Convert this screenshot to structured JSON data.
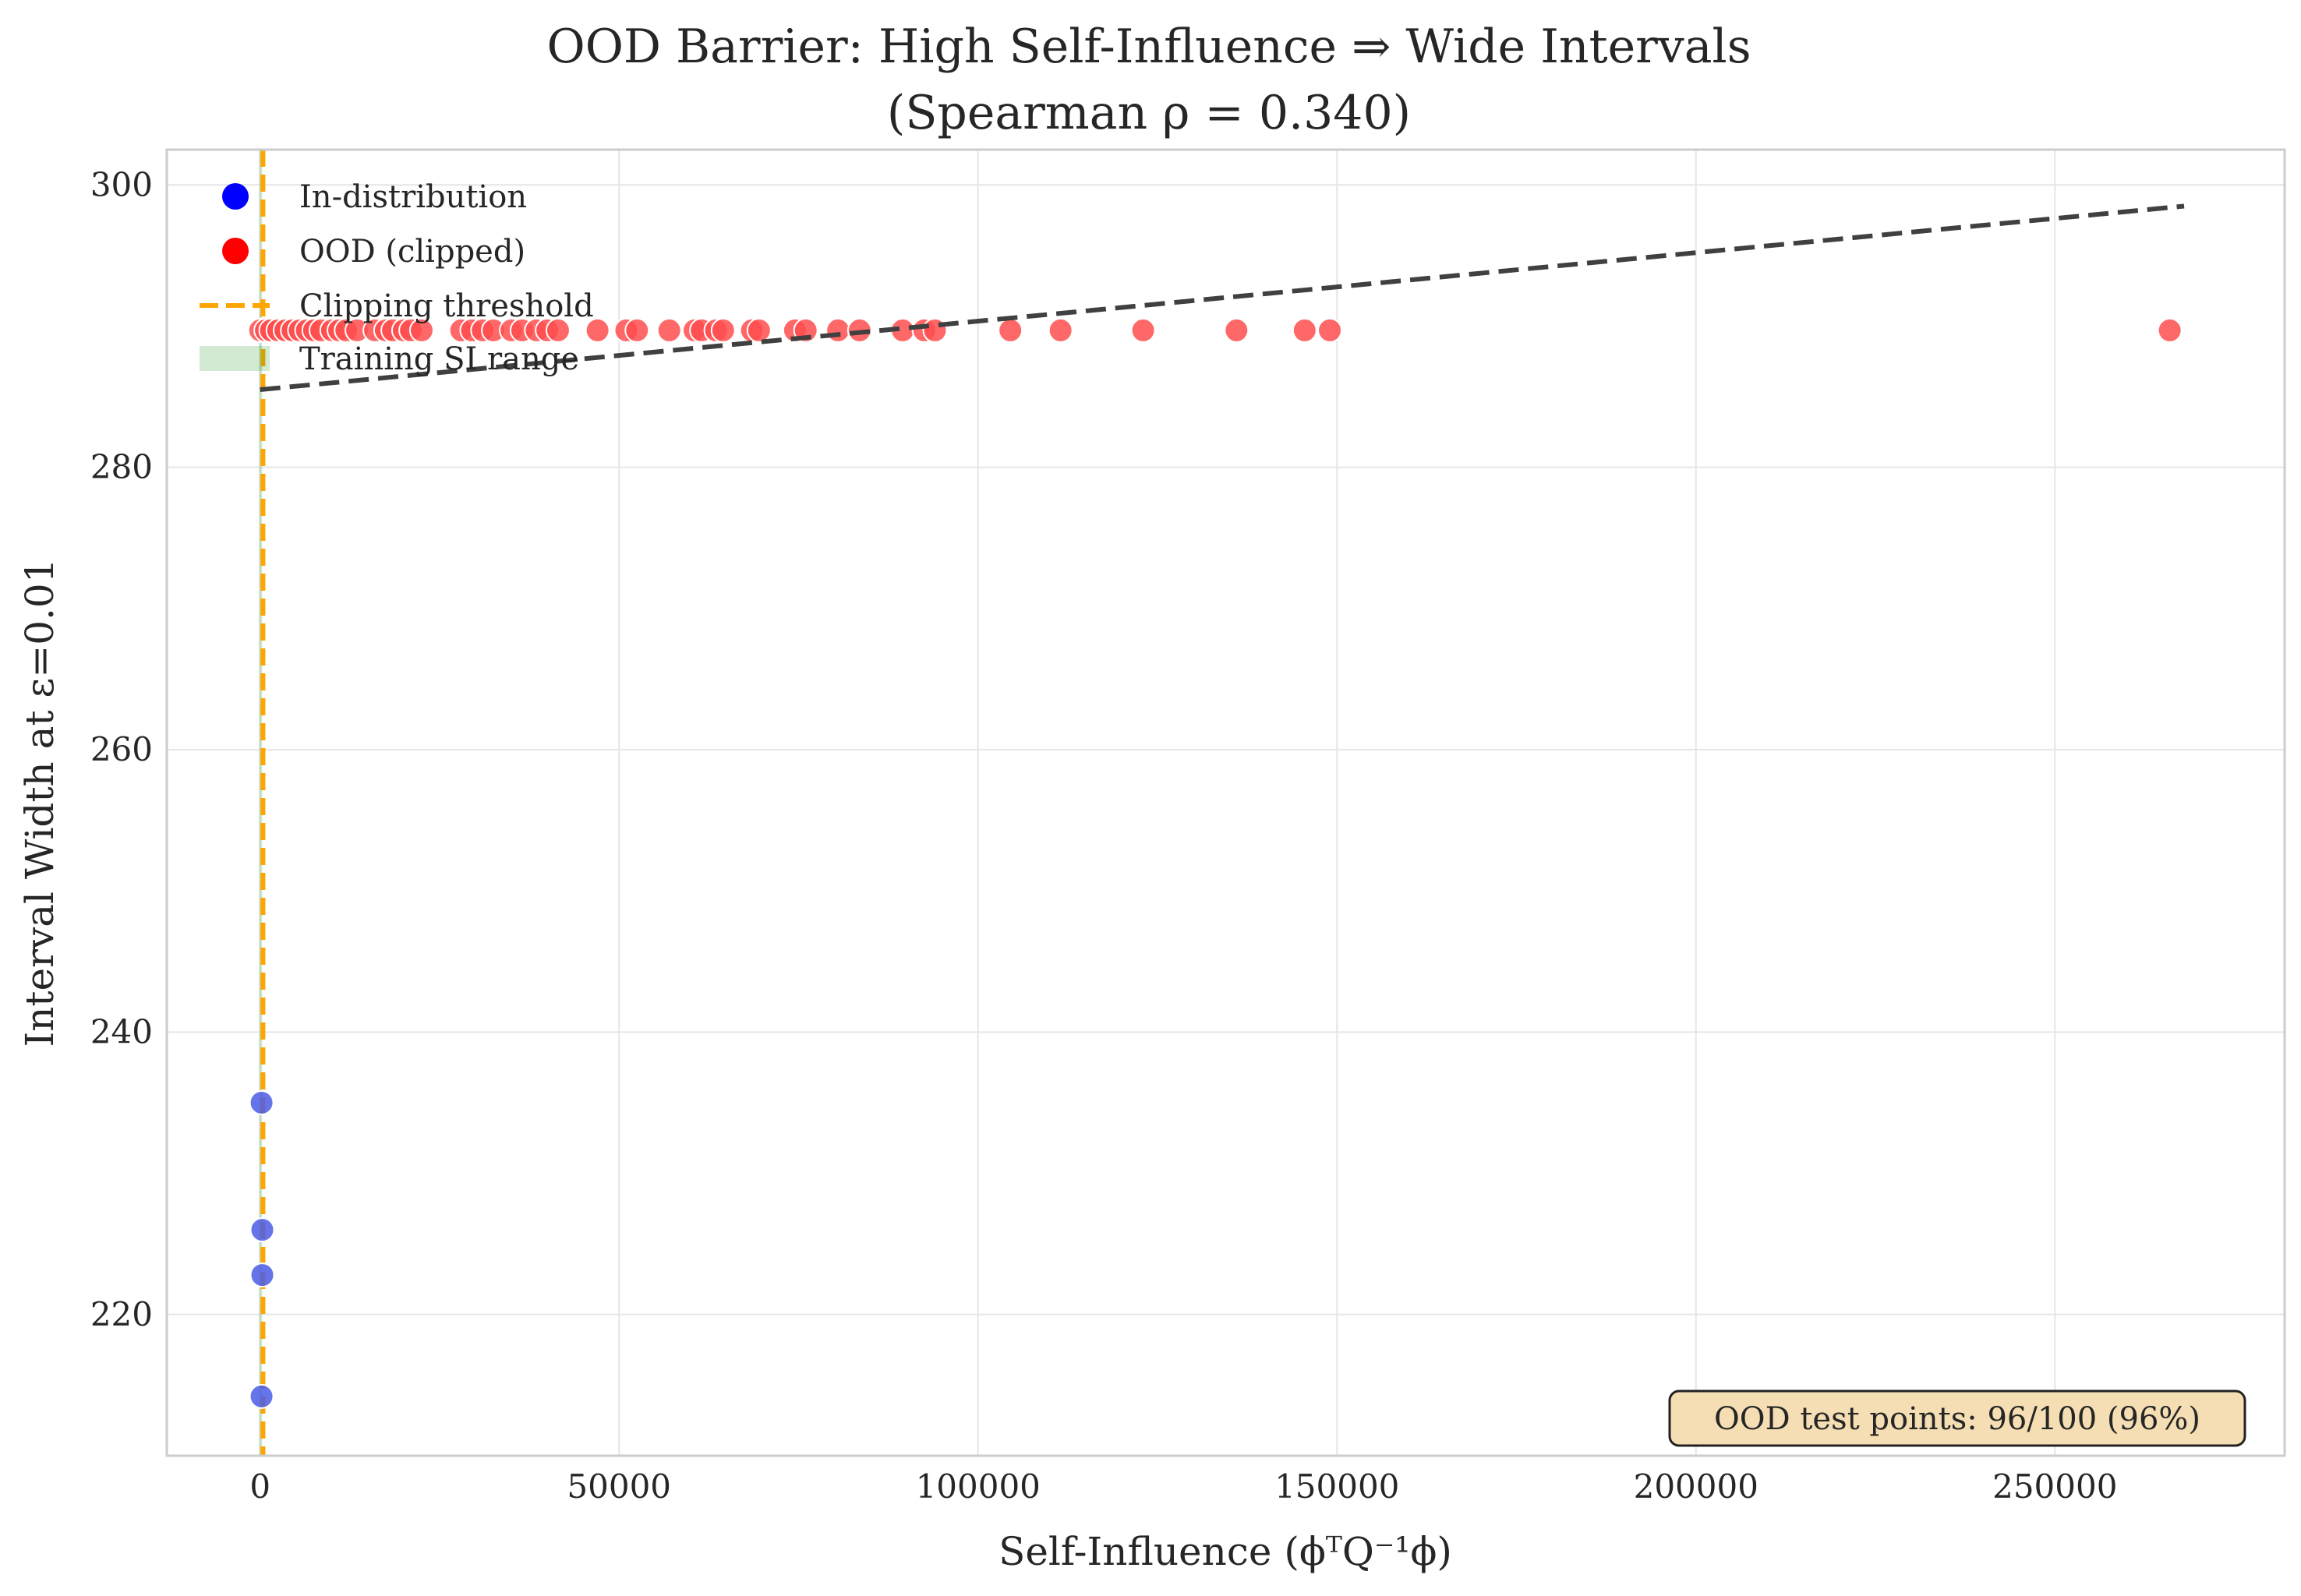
{
  "chart_data": {
    "type": "scatter",
    "title_line1": "OOD Barrier: High Self-Influence ⇒ Wide Intervals",
    "title_line2": "(Spearman ρ = 0.340)",
    "xlabel": "Self-Influence (ϕᵀQ⁻¹ϕ)",
    "ylabel": "Interval Width at ε=0.01",
    "xlim": [
      -13000,
      282000
    ],
    "ylim": [
      210,
      302.5
    ],
    "xticks": [
      0,
      50000,
      100000,
      150000,
      200000,
      250000
    ],
    "xtick_labels": [
      "0",
      "50000",
      "100000",
      "150000",
      "200000",
      "250000"
    ],
    "yticks": [
      220,
      240,
      260,
      280,
      300
    ],
    "ytick_labels": [
      "220",
      "240",
      "260",
      "280",
      "300"
    ],
    "grid": true,
    "legend_position": "top-left",
    "legend": [
      {
        "label": "In-distribution",
        "color": "#0000ff",
        "kind": "marker"
      },
      {
        "label": "OOD (clipped)",
        "color": "#ff0000",
        "kind": "marker"
      },
      {
        "label": "Clipping threshold",
        "color": "#ffa500",
        "kind": "dashed-line"
      },
      {
        "label": "Training SI range",
        "color": "#2ca02c",
        "kind": "patch"
      }
    ],
    "series": [
      {
        "name": "In-distribution",
        "color": "#4b5ce6",
        "x": [
          200,
          300,
          300,
          200
        ],
        "y": [
          235.0,
          226.0,
          222.8,
          214.2
        ]
      },
      {
        "name": "OOD (clipped)",
        "color": "#ff4d4d",
        "y_value": 289.7,
        "x": [
          0,
          800,
          1500,
          2500,
          3500,
          4500,
          5500,
          6500,
          7500,
          8500,
          10000,
          11000,
          12000,
          13500,
          16000,
          17500,
          18500,
          20000,
          21000,
          22500,
          28000,
          29500,
          31000,
          32500,
          35000,
          36500,
          38500,
          40000,
          41500,
          47000,
          51000,
          52500,
          57000,
          60500,
          61500,
          63500,
          64500,
          68500,
          69500,
          74500,
          76000,
          80500,
          83500,
          89500,
          92500,
          94000,
          104500,
          111500,
          123000,
          136000,
          145500,
          149000,
          266000
        ]
      }
    ],
    "clipping_threshold_x": 400,
    "training_si_range": [
      -150,
      250
    ],
    "trend_line": {
      "x": [
        0,
        268000
      ],
      "y": [
        285.5,
        298.5
      ],
      "color": "#404040"
    },
    "annotation": "OOD test points: 96/100 (96%)"
  }
}
